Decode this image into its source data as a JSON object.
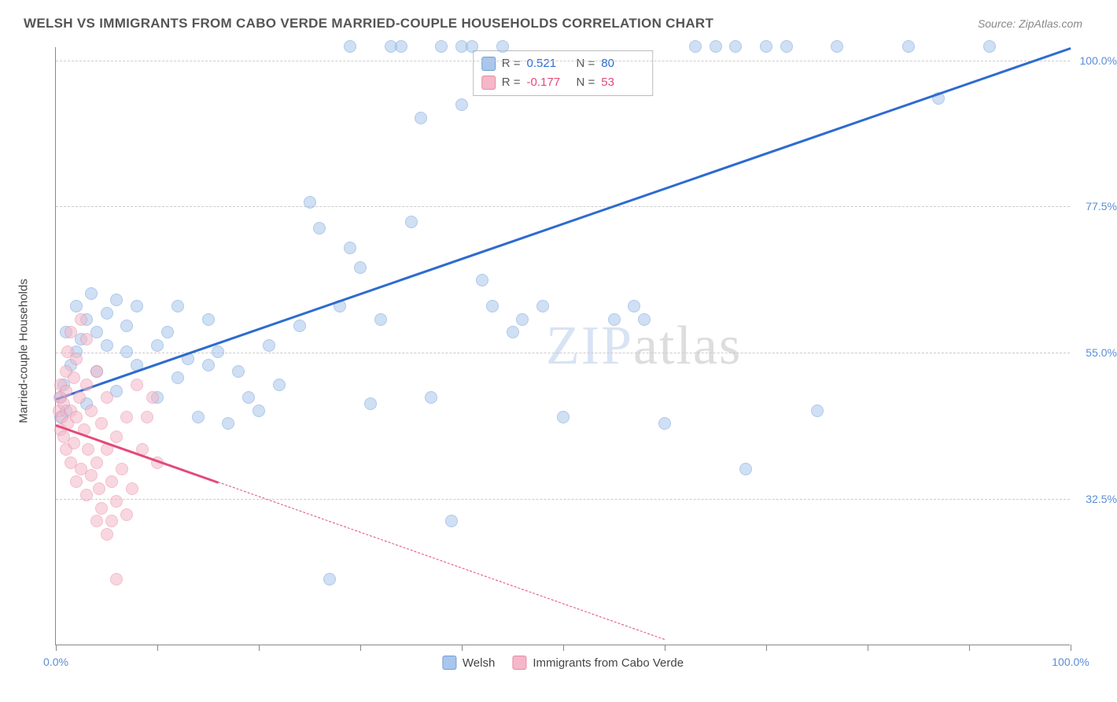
{
  "header": {
    "title": "WELSH VS IMMIGRANTS FROM CABO VERDE MARRIED-COUPLE HOUSEHOLDS CORRELATION CHART",
    "source": "Source: ZipAtlas.com"
  },
  "chart": {
    "type": "scatter",
    "ylabel": "Married-couple Households",
    "xlim": [
      0,
      100
    ],
    "ylim": [
      10,
      102
    ],
    "background_color": "#ffffff",
    "grid_color": "#cccccc",
    "axis_color": "#888888",
    "yticks": [
      {
        "value": 32.5,
        "label": "32.5%"
      },
      {
        "value": 55.0,
        "label": "55.0%"
      },
      {
        "value": 77.5,
        "label": "77.5%"
      },
      {
        "value": 100.0,
        "label": "100.0%"
      }
    ],
    "xtick_values": [
      0,
      10,
      20,
      30,
      40,
      50,
      60,
      70,
      80,
      90,
      100
    ],
    "xtick_labels": {
      "start": "0.0%",
      "end": "100.0%"
    },
    "watermark": {
      "part1": "ZIP",
      "part2": "atlas"
    },
    "marker_radius": 8,
    "marker_stroke": 1.5,
    "series": [
      {
        "name": "Welsh",
        "fill_color": "#a9c6ec",
        "fill_opacity": 0.55,
        "stroke_color": "#6f9ed9",
        "line_color": "#2e6bd0",
        "r_value": "0.521",
        "n_value": "80",
        "trend": {
          "x1": 0,
          "y1": 48,
          "x2": 100,
          "y2": 102,
          "solid_until_x": 100
        },
        "points": [
          [
            0.5,
            45
          ],
          [
            0.5,
            48
          ],
          [
            0.8,
            50
          ],
          [
            1,
            46
          ],
          [
            1,
            58
          ],
          [
            1.5,
            53
          ],
          [
            2,
            62
          ],
          [
            2,
            55
          ],
          [
            2.5,
            57
          ],
          [
            3,
            47
          ],
          [
            3,
            60
          ],
          [
            3.5,
            64
          ],
          [
            4,
            52
          ],
          [
            4,
            58
          ],
          [
            5,
            61
          ],
          [
            5,
            56
          ],
          [
            6,
            63
          ],
          [
            6,
            49
          ],
          [
            7,
            59
          ],
          [
            7,
            55
          ],
          [
            8,
            62
          ],
          [
            8,
            53
          ],
          [
            10,
            56
          ],
          [
            10,
            48
          ],
          [
            11,
            58
          ],
          [
            12,
            62
          ],
          [
            12,
            51
          ],
          [
            13,
            54
          ],
          [
            14,
            45
          ],
          [
            15,
            53
          ],
          [
            15,
            60
          ],
          [
            16,
            55
          ],
          [
            17,
            44
          ],
          [
            18,
            52
          ],
          [
            19,
            48
          ],
          [
            20,
            46
          ],
          [
            21,
            56
          ],
          [
            22,
            50
          ],
          [
            24,
            59
          ],
          [
            25,
            78
          ],
          [
            26,
            74
          ],
          [
            27,
            20
          ],
          [
            28,
            62
          ],
          [
            29,
            102
          ],
          [
            29,
            71
          ],
          [
            30,
            68
          ],
          [
            31,
            47
          ],
          [
            32,
            60
          ],
          [
            33,
            102
          ],
          [
            34,
            102
          ],
          [
            35,
            75
          ],
          [
            36,
            91
          ],
          [
            37,
            48
          ],
          [
            38,
            102
          ],
          [
            39,
            29
          ],
          [
            40,
            93
          ],
          [
            40,
            102
          ],
          [
            41,
            102
          ],
          [
            42,
            66
          ],
          [
            43,
            62
          ],
          [
            44,
            102
          ],
          [
            45,
            58
          ],
          [
            46,
            60
          ],
          [
            48,
            62
          ],
          [
            50,
            45
          ],
          [
            57,
            62
          ],
          [
            58,
            60
          ],
          [
            60,
            44
          ],
          [
            63,
            102
          ],
          [
            65,
            102
          ],
          [
            67,
            102
          ],
          [
            68,
            37
          ],
          [
            70,
            102
          ],
          [
            72,
            102
          ],
          [
            75,
            46
          ],
          [
            77,
            102
          ],
          [
            87,
            94
          ],
          [
            92,
            102
          ],
          [
            84,
            102
          ],
          [
            55,
            60
          ]
        ]
      },
      {
        "name": "Immigrants from Cabo Verde",
        "fill_color": "#f4b8c8",
        "fill_opacity": 0.55,
        "stroke_color": "#e78aa5",
        "line_color": "#e24a7a",
        "r_value": "-0.177",
        "n_value": "53",
        "trend": {
          "x1": 0,
          "y1": 44,
          "x2": 60,
          "y2": 11,
          "solid_until_x": 16
        },
        "points": [
          [
            0.3,
            46
          ],
          [
            0.4,
            48
          ],
          [
            0.5,
            50
          ],
          [
            0.5,
            43
          ],
          [
            0.6,
            45
          ],
          [
            0.8,
            47
          ],
          [
            0.8,
            42
          ],
          [
            1,
            49
          ],
          [
            1,
            52
          ],
          [
            1,
            40
          ],
          [
            1.2,
            44
          ],
          [
            1.2,
            55
          ],
          [
            1.5,
            46
          ],
          [
            1.5,
            58
          ],
          [
            1.5,
            38
          ],
          [
            1.8,
            41
          ],
          [
            1.8,
            51
          ],
          [
            2,
            35
          ],
          [
            2,
            45
          ],
          [
            2,
            54
          ],
          [
            2.3,
            48
          ],
          [
            2.5,
            37
          ],
          [
            2.5,
            60
          ],
          [
            2.8,
            43
          ],
          [
            3,
            33
          ],
          [
            3,
            50
          ],
          [
            3,
            57
          ],
          [
            3.2,
            40
          ],
          [
            3.5,
            36
          ],
          [
            3.5,
            46
          ],
          [
            4,
            29
          ],
          [
            4,
            38
          ],
          [
            4,
            52
          ],
          [
            4.3,
            34
          ],
          [
            4.5,
            31
          ],
          [
            4.5,
            44
          ],
          [
            5,
            27
          ],
          [
            5,
            40
          ],
          [
            5,
            48
          ],
          [
            5.5,
            35
          ],
          [
            5.5,
            29
          ],
          [
            6,
            32
          ],
          [
            6,
            42
          ],
          [
            6,
            20
          ],
          [
            6.5,
            37
          ],
          [
            7,
            30
          ],
          [
            7,
            45
          ],
          [
            7.5,
            34
          ],
          [
            8,
            50
          ],
          [
            8.5,
            40
          ],
          [
            9,
            45
          ],
          [
            9.5,
            48
          ],
          [
            10,
            38
          ]
        ]
      }
    ]
  }
}
